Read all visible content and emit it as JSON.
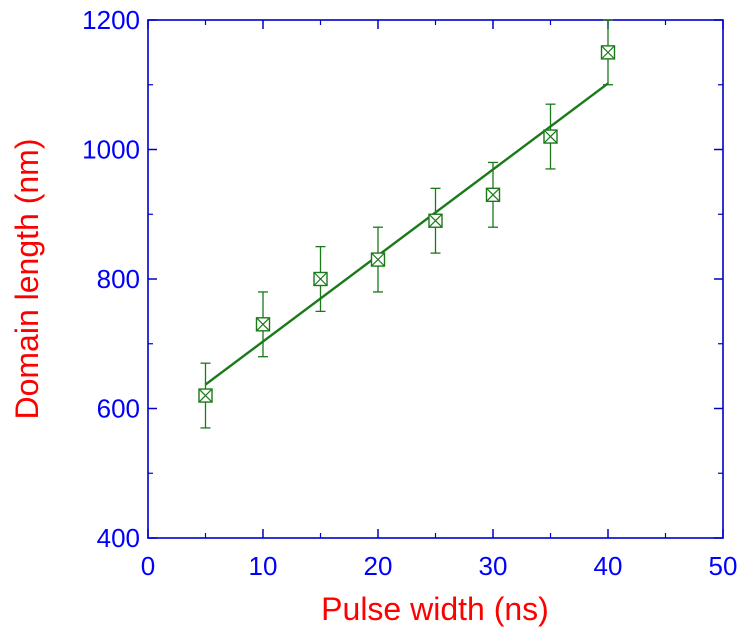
{
  "colors": {
    "axis": "#0000c8",
    "tick_labels": "#0000ff",
    "axis_titles": "#ff0000",
    "series": "#1a7a1a"
  },
  "chart_data": {
    "type": "scatter",
    "title": "",
    "xlabel": "Pulse width (ns)",
    "ylabel": "Domain length (nm)",
    "xlim": [
      0,
      50
    ],
    "ylim": [
      400,
      1200
    ],
    "xticks": [
      0,
      10,
      20,
      30,
      40,
      50
    ],
    "yticks": [
      400,
      600,
      800,
      1000,
      1200
    ],
    "grid": false,
    "legend": "none",
    "series": [
      {
        "marker": "square-with-x",
        "x": [
          5,
          10,
          15,
          20,
          25,
          30,
          35,
          40
        ],
        "y": [
          620,
          730,
          800,
          830,
          890,
          930,
          1020,
          1150
        ],
        "error": [
          50,
          50,
          50,
          50,
          50,
          50,
          50,
          50
        ]
      }
    ],
    "fit_line": {
      "x": [
        5,
        40
      ],
      "y": [
        637,
        1102
      ]
    }
  }
}
